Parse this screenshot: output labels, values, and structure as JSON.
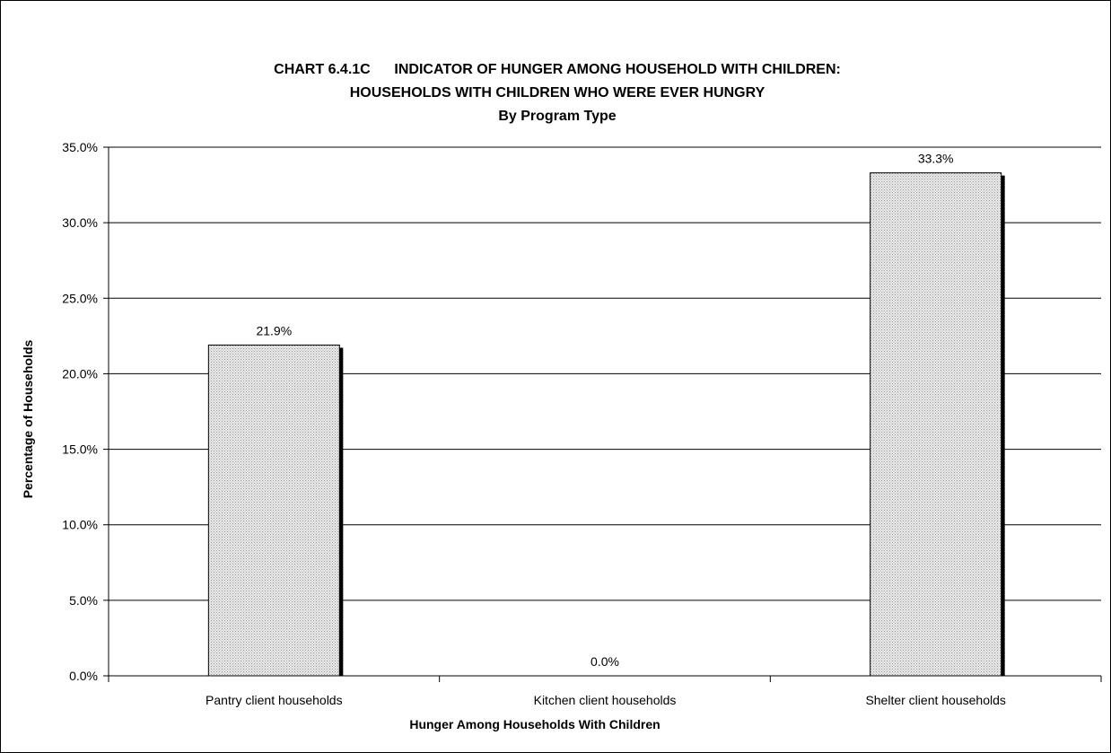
{
  "chart_data": {
    "type": "bar",
    "title_lines": [
      "CHART 6.4.1C      INDICATOR OF HUNGER AMONG HOUSEHOLD WITH CHILDREN:",
      "HOUSEHOLDS WITH CHILDREN WHO WERE EVER HUNGRY",
      "By Program Type"
    ],
    "categories": [
      "Pantry client households",
      "Kitchen client households",
      "Shelter client households"
    ],
    "values": [
      21.9,
      0.0,
      33.3
    ],
    "data_labels": [
      "21.9%",
      "0.0%",
      "33.3%"
    ],
    "xlabel": "Hunger Among Households With Children",
    "ylabel": "Percentage of Households",
    "ylim": [
      0,
      35
    ],
    "yticks": [
      0,
      5,
      10,
      15,
      20,
      25,
      30,
      35
    ],
    "ytick_labels": [
      "0.0%",
      "5.0%",
      "10.0%",
      "15.0%",
      "20.0%",
      "25.0%",
      "30.0%",
      "35.0%"
    ],
    "grid": true,
    "legend": "none",
    "bar_fill": "dotted light gray",
    "colors": {
      "bar_fill": "#e8e8e8",
      "bar_dots": "#9a9a9a",
      "bar_edge": "#000000",
      "grid": "#000000"
    }
  }
}
